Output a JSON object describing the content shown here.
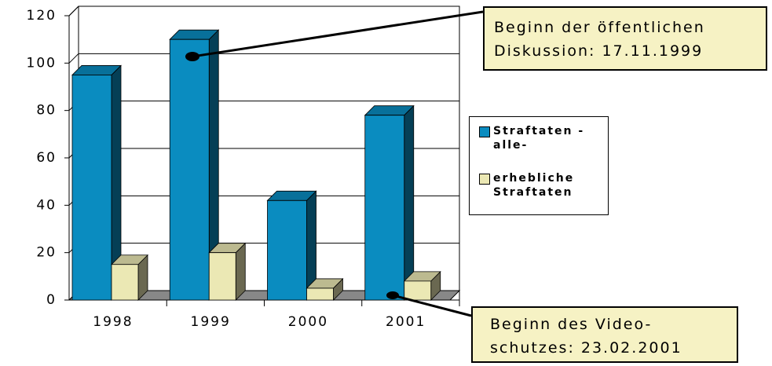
{
  "chart_data": {
    "type": "bar",
    "categories": [
      "1998",
      "1999",
      "2000",
      "2001"
    ],
    "series": [
      {
        "name": "Straftaten -alle-",
        "color": "#0a8cc0",
        "values": [
          95,
          110,
          42,
          78
        ]
      },
      {
        "name": "erhebliche Straftaten",
        "color": "#ebe8b4",
        "values": [
          15,
          20,
          5,
          8
        ]
      }
    ],
    "ylim": [
      0,
      120
    ],
    "yticks": [
      0,
      20,
      40,
      60,
      80,
      100,
      120
    ],
    "grid": true,
    "annotations": [
      {
        "text": "Beginn der öffentlichen Diskussion: 17.11.1999"
      },
      {
        "text": "Beginn des Video-schutzes: 23.02.2001"
      }
    ]
  }
}
